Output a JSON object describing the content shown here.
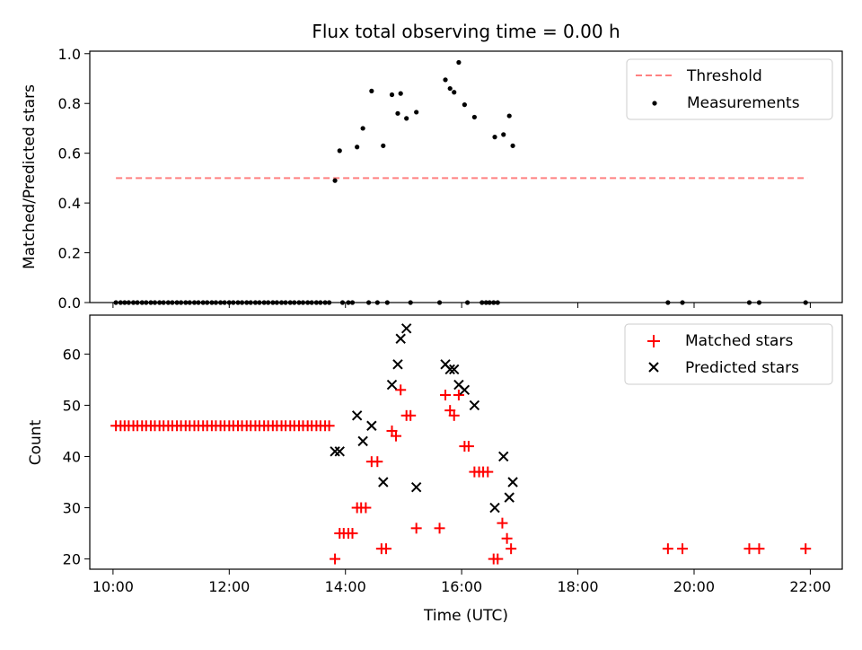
{
  "chart_data": [
    {
      "type": "scatter",
      "title": "Flux total observing time = 0.00 h",
      "xlabel": "",
      "ylabel": "Matched/Predicted stars",
      "xlim": [
        9.6,
        22.55
      ],
      "ylim": [
        0,
        1.01
      ],
      "x_ticks": [
        10,
        12,
        14,
        16,
        18,
        20,
        22
      ],
      "x_tick_labels": [
        "",
        "",
        "",
        "",
        "",
        "",
        ""
      ],
      "y_ticks": [
        0.0,
        0.2,
        0.4,
        0.6,
        0.8,
        1.0
      ],
      "y_tick_labels": [
        "0.0",
        "0.2",
        "0.4",
        "0.6",
        "0.8",
        "1.0"
      ],
      "grid": false,
      "legend": "top-right",
      "series": [
        {
          "name": "Threshold",
          "kind": "line",
          "style": "dashed",
          "color": "#ff8080",
          "x": [
            10.05,
            21.95
          ],
          "y": [
            0.5,
            0.5
          ]
        },
        {
          "name": "Measurements",
          "kind": "scatter",
          "marker": "dot",
          "color": "#000000",
          "x": [
            10.05,
            10.13,
            10.2,
            10.27,
            10.35,
            10.42,
            10.5,
            10.57,
            10.65,
            10.72,
            10.8,
            10.87,
            10.95,
            11.02,
            11.1,
            11.17,
            11.25,
            11.32,
            11.4,
            11.47,
            11.55,
            11.62,
            11.7,
            11.77,
            11.85,
            11.92,
            12.0,
            12.07,
            12.15,
            12.22,
            12.3,
            12.37,
            12.45,
            12.52,
            12.6,
            12.67,
            12.75,
            12.82,
            12.9,
            12.97,
            13.05,
            13.12,
            13.2,
            13.27,
            13.35,
            13.42,
            13.5,
            13.57,
            13.65,
            13.72,
            13.95,
            14.05,
            14.12,
            14.4,
            14.55,
            14.72,
            15.12,
            15.62,
            16.1,
            16.35,
            16.42,
            16.48,
            16.55,
            16.62,
            19.55,
            19.8,
            20.95,
            21.12,
            21.92,
            13.82,
            13.9,
            14.2,
            14.3,
            14.45,
            14.65,
            14.8,
            14.9,
            14.95,
            15.05,
            15.22,
            15.72,
            15.8,
            15.87,
            15.95,
            16.05,
            16.22,
            16.57,
            16.72,
            16.82,
            16.88
          ],
          "y": [
            0,
            0,
            0,
            0,
            0,
            0,
            0,
            0,
            0,
            0,
            0,
            0,
            0,
            0,
            0,
            0,
            0,
            0,
            0,
            0,
            0,
            0,
            0,
            0,
            0,
            0,
            0,
            0,
            0,
            0,
            0,
            0,
            0,
            0,
            0,
            0,
            0,
            0,
            0,
            0,
            0,
            0,
            0,
            0,
            0,
            0,
            0,
            0,
            0,
            0,
            0,
            0,
            0,
            0,
            0,
            0,
            0,
            0,
            0,
            0,
            0,
            0,
            0,
            0,
            0,
            0,
            0,
            0,
            0,
            0.49,
            0.61,
            0.625,
            0.7,
            0.85,
            0.63,
            0.835,
            0.76,
            0.84,
            0.74,
            0.765,
            0.895,
            0.86,
            0.845,
            0.965,
            0.795,
            0.745,
            0.665,
            0.675,
            0.75,
            0.63
          ]
        }
      ]
    },
    {
      "type": "scatter",
      "title": "",
      "xlabel": "Time (UTC)",
      "ylabel": "Count",
      "xlim": [
        9.6,
        22.55
      ],
      "ylim": [
        18,
        67.6
      ],
      "x_ticks": [
        10,
        12,
        14,
        16,
        18,
        20,
        22
      ],
      "x_tick_labels": [
        "10:00",
        "12:00",
        "14:00",
        "16:00",
        "18:00",
        "20:00",
        "22:00"
      ],
      "y_ticks": [
        20,
        30,
        40,
        50,
        60
      ],
      "y_tick_labels": [
        "20",
        "30",
        "40",
        "50",
        "60"
      ],
      "grid": false,
      "legend": "top-right",
      "series": [
        {
          "name": "Matched stars",
          "kind": "scatter",
          "marker": "plus",
          "color": "#ff0000",
          "x": [
            10.05,
            10.13,
            10.2,
            10.27,
            10.35,
            10.42,
            10.5,
            10.57,
            10.65,
            10.72,
            10.8,
            10.87,
            10.95,
            11.02,
            11.1,
            11.17,
            11.25,
            11.32,
            11.4,
            11.47,
            11.55,
            11.62,
            11.7,
            11.77,
            11.85,
            11.92,
            12.0,
            12.07,
            12.15,
            12.22,
            12.3,
            12.37,
            12.45,
            12.52,
            12.6,
            12.67,
            12.75,
            12.82,
            12.9,
            12.97,
            13.05,
            13.12,
            13.2,
            13.27,
            13.35,
            13.42,
            13.5,
            13.57,
            13.65,
            13.72,
            13.82,
            13.9,
            13.97,
            14.05,
            14.12,
            14.2,
            14.27,
            14.35,
            14.45,
            14.55,
            14.62,
            14.7,
            14.8,
            14.87,
            14.95,
            15.05,
            15.12,
            15.22,
            15.62,
            15.72,
            15.8,
            15.87,
            15.95,
            16.05,
            16.12,
            16.22,
            16.3,
            16.37,
            16.45,
            16.55,
            16.62,
            16.7,
            16.78,
            16.85,
            19.55,
            19.8,
            20.95,
            21.12,
            21.92
          ],
          "y": [
            46,
            46,
            46,
            46,
            46,
            46,
            46,
            46,
            46,
            46,
            46,
            46,
            46,
            46,
            46,
            46,
            46,
            46,
            46,
            46,
            46,
            46,
            46,
            46,
            46,
            46,
            46,
            46,
            46,
            46,
            46,
            46,
            46,
            46,
            46,
            46,
            46,
            46,
            46,
            46,
            46,
            46,
            46,
            46,
            46,
            46,
            46,
            46,
            46,
            46,
            20,
            25,
            25,
            25,
            25,
            30,
            30,
            30,
            39,
            39,
            22,
            22,
            45,
            44,
            53,
            48,
            48,
            26,
            26,
            52,
            49,
            48,
            52,
            42,
            42,
            37,
            37,
            37,
            37,
            20,
            20,
            27,
            24,
            22,
            22,
            22,
            22,
            22,
            22
          ]
        },
        {
          "name": "Predicted stars",
          "kind": "scatter",
          "marker": "cross",
          "color": "#000000",
          "x": [
            13.82,
            13.9,
            14.2,
            14.3,
            14.45,
            14.65,
            14.8,
            14.9,
            14.95,
            15.05,
            15.22,
            15.72,
            15.8,
            15.87,
            15.95,
            16.05,
            16.22,
            16.57,
            16.72,
            16.82,
            16.88
          ],
          "y": [
            41,
            41,
            48,
            43,
            46,
            35,
            54,
            58,
            63,
            65,
            34,
            58,
            57,
            57,
            54,
            53,
            50,
            30,
            40,
            32,
            35
          ]
        }
      ]
    }
  ]
}
